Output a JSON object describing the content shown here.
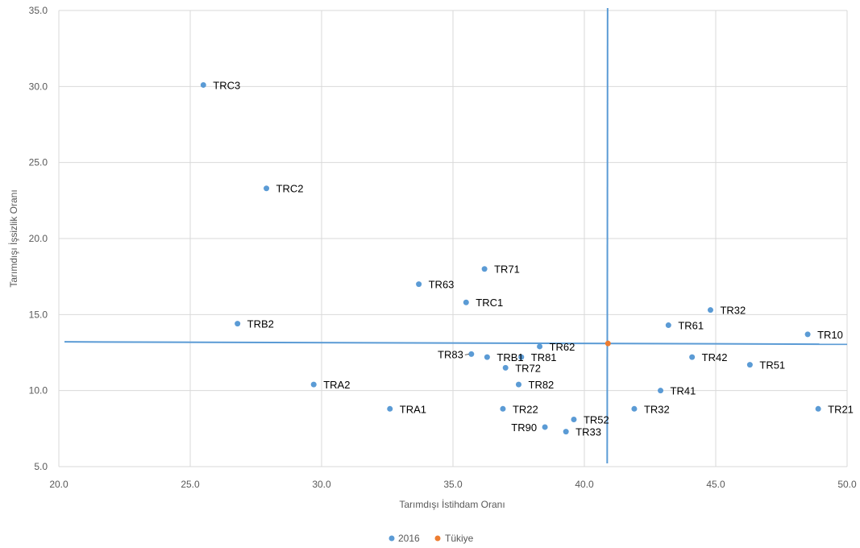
{
  "chart_data": {
    "type": "scatter",
    "xlabel": "Tarımdışı İstihdam Oranı",
    "ylabel": "Tarımdışı İşsizlik Oranı",
    "xlim": [
      20,
      50
    ],
    "ylim": [
      5,
      35
    ],
    "x_ticks": [
      "20.0",
      "25.0",
      "30.0",
      "35.0",
      "40.0",
      "45.0",
      "50.0"
    ],
    "y_ticks": [
      "5.0",
      "10.0",
      "15.0",
      "20.0",
      "25.0",
      "30.0",
      "35.0"
    ],
    "grid": true,
    "legend_position": "bottom",
    "series": [
      {
        "name": "2016",
        "color": "#5B9BD5",
        "points": [
          {
            "label": "TRC3",
            "x": 25.5,
            "y": 30.1
          },
          {
            "label": "TRC2",
            "x": 27.9,
            "y": 23.3
          },
          {
            "label": "TR71",
            "x": 36.2,
            "y": 18.0
          },
          {
            "label": "TR63",
            "x": 33.7,
            "y": 17.0
          },
          {
            "label": "TRC1",
            "x": 35.5,
            "y": 15.8
          },
          {
            "label": "TRB2",
            "x": 26.8,
            "y": 14.4
          },
          {
            "label": "TR32",
            "x": 44.8,
            "y": 15.3
          },
          {
            "label": "TR61",
            "x": 43.2,
            "y": 14.3
          },
          {
            "label": "TR10",
            "x": 48.5,
            "y": 13.7
          },
          {
            "label": "TR62",
            "x": 38.3,
            "y": 12.9
          },
          {
            "label": "TR83",
            "x": 35.7,
            "y": 12.4
          },
          {
            "label": "TRB1",
            "x": 36.3,
            "y": 12.2
          },
          {
            "label": "TR81",
            "x": 37.6,
            "y": 12.2
          },
          {
            "label": "TR42",
            "x": 44.1,
            "y": 12.2
          },
          {
            "label": "TR72",
            "x": 37.0,
            "y": 11.5
          },
          {
            "label": "TR51",
            "x": 46.3,
            "y": 11.7
          },
          {
            "label": "TR82",
            "x": 37.5,
            "y": 10.4
          },
          {
            "label": "TRA2",
            "x": 29.7,
            "y": 10.4
          },
          {
            "label": "TR41",
            "x": 42.9,
            "y": 10.0
          },
          {
            "label": "TRA1",
            "x": 32.6,
            "y": 8.8
          },
          {
            "label": "TR22",
            "x": 36.9,
            "y": 8.8
          },
          {
            "label": "TR32",
            "x": 41.9,
            "y": 8.8
          },
          {
            "label": "TR21",
            "x": 48.9,
            "y": 8.8
          },
          {
            "label": "TR52",
            "x": 39.6,
            "y": 8.1
          },
          {
            "label": "TR90",
            "x": 38.5,
            "y": 7.6
          },
          {
            "label": "TR33",
            "x": 39.3,
            "y": 7.3
          }
        ]
      },
      {
        "name": "Tükiye",
        "color": "#ED7D31",
        "points": [
          {
            "label": "",
            "x": 40.9,
            "y": 13.1
          }
        ]
      }
    ],
    "reference_lines": {
      "color": "#5B9BD5",
      "vertical_x": 40.9,
      "horizontal_y": 13.1
    }
  }
}
